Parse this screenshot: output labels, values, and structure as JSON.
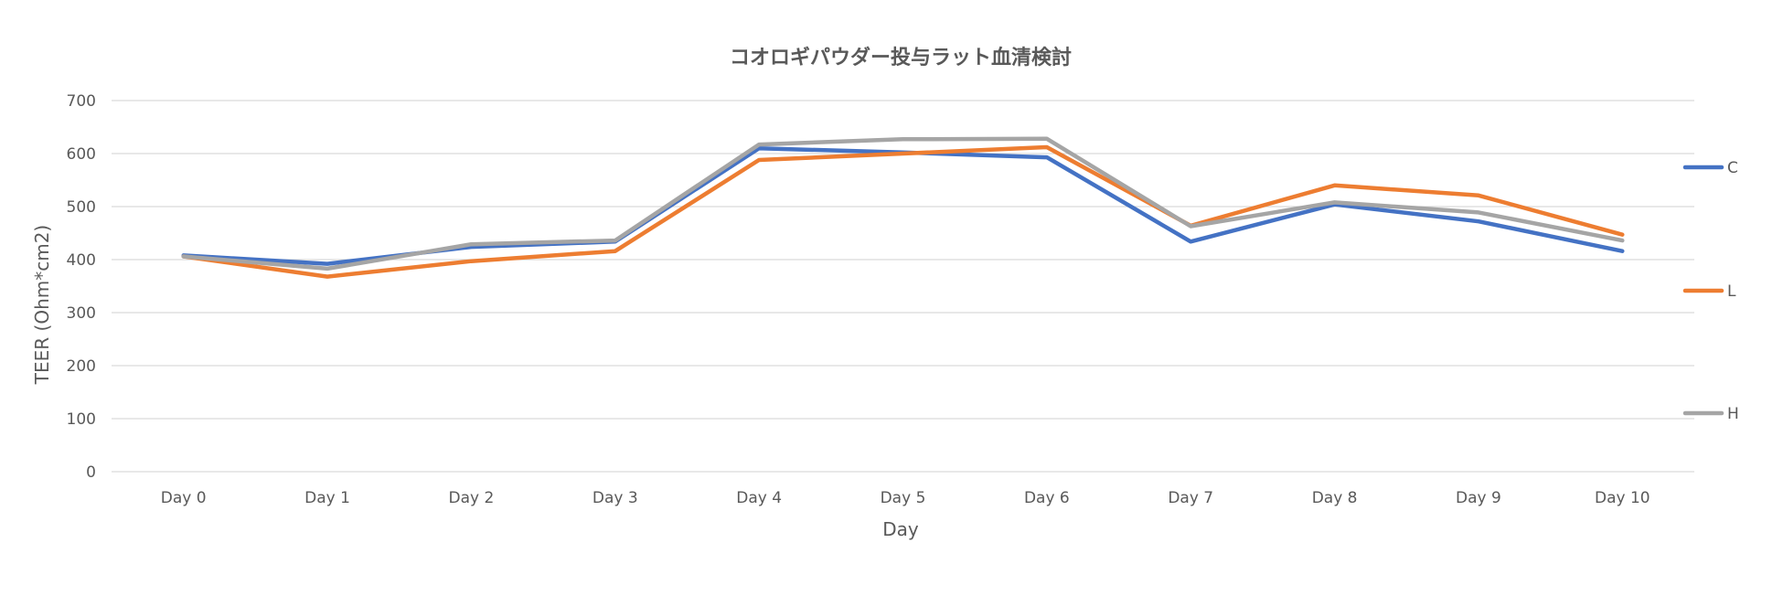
{
  "chart_data": {
    "type": "line",
    "title": "コオロギパウダー投与ラット血清検討",
    "xlabel": "Day",
    "ylabel": "TEER (Ohm*cm2)",
    "ylim": [
      0,
      700
    ],
    "yticks": [
      "0",
      "100",
      "200",
      "300",
      "400",
      "500",
      "600",
      "700"
    ],
    "categories": [
      "Day 0",
      "Day 1",
      "Day 2",
      "Day 3",
      "Day 4",
      "Day 5",
      "Day 6",
      "Day 7",
      "Day 8",
      "Day 9",
      "Day 10"
    ],
    "grid": true,
    "legend_position": "right",
    "series": [
      {
        "name": "C",
        "color": "#4472C4",
        "values": [
          408,
          392,
          424,
          434,
          610,
          602,
          593,
          434,
          504,
          472,
          416
        ]
      },
      {
        "name": "L",
        "color": "#ED7D31",
        "values": [
          406,
          368,
          397,
          416,
          588,
          600,
          612,
          464,
          540,
          521,
          447
        ]
      },
      {
        "name": "H",
        "color": "#A5A5A5",
        "values": [
          406,
          383,
          429,
          436,
          617,
          627,
          628,
          463,
          508,
          489,
          436
        ]
      }
    ]
  }
}
